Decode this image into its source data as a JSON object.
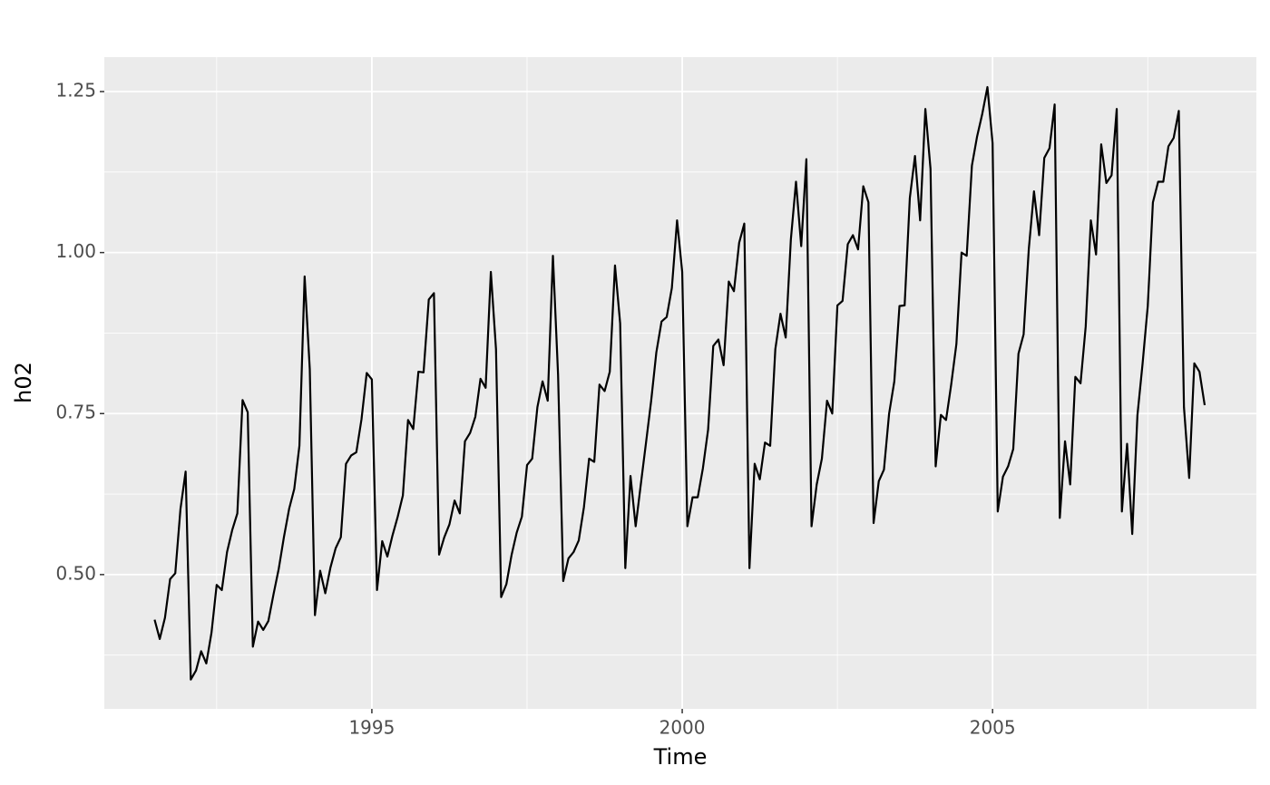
{
  "chart_data": {
    "type": "line",
    "x_label": "Time",
    "y_label": "h02",
    "xlim": [
      1990.69,
      2009.25
    ],
    "ylim": [
      0.2915,
      1.3035
    ],
    "xticks": [
      1995,
      2000,
      2005
    ],
    "yticks": [
      {
        "value": 0.5,
        "label": "0.50"
      },
      {
        "value": 0.75,
        "label": "0.75"
      },
      {
        "value": 1.0,
        "label": "1.00"
      },
      {
        "value": 1.25,
        "label": "1.25"
      }
    ],
    "grid": true,
    "color": "#000000",
    "x": [
      1991.5,
      1991.583,
      1991.667,
      1991.75,
      1991.833,
      1991.917,
      1992,
      1992.083,
      1992.167,
      1992.25,
      1992.333,
      1992.417,
      1992.5,
      1992.583,
      1992.667,
      1992.75,
      1992.833,
      1992.917,
      1993,
      1993.083,
      1993.167,
      1993.25,
      1993.333,
      1993.417,
      1993.5,
      1993.583,
      1993.667,
      1993.75,
      1993.833,
      1993.917,
      1994,
      1994.083,
      1994.167,
      1994.25,
      1994.333,
      1994.417,
      1994.5,
      1994.583,
      1994.667,
      1994.75,
      1994.833,
      1994.917,
      1995,
      1995.083,
      1995.167,
      1995.25,
      1995.333,
      1995.417,
      1995.5,
      1995.583,
      1995.667,
      1995.75,
      1995.833,
      1995.917,
      1996,
      1996.083,
      1996.167,
      1996.25,
      1996.333,
      1996.417,
      1996.5,
      1996.583,
      1996.667,
      1996.75,
      1996.833,
      1996.917,
      1997,
      1997.083,
      1997.167,
      1997.25,
      1997.333,
      1997.417,
      1997.5,
      1997.583,
      1997.667,
      1997.75,
      1997.833,
      1997.917,
      1998,
      1998.083,
      1998.167,
      1998.25,
      1998.333,
      1998.417,
      1998.5,
      1998.583,
      1998.667,
      1998.75,
      1998.833,
      1998.917,
      1999,
      1999.083,
      1999.167,
      1999.25,
      1999.333,
      1999.417,
      1999.5,
      1999.583,
      1999.667,
      1999.75,
      1999.833,
      1999.917,
      2000,
      2000.083,
      2000.167,
      2000.25,
      2000.333,
      2000.417,
      2000.5,
      2000.583,
      2000.667,
      2000.75,
      2000.833,
      2000.917,
      2001,
      2001.083,
      2001.167,
      2001.25,
      2001.333,
      2001.417,
      2001.5,
      2001.583,
      2001.667,
      2001.75,
      2001.833,
      2001.917,
      2002,
      2002.083,
      2002.167,
      2002.25,
      2002.333,
      2002.417,
      2002.5,
      2002.583,
      2002.667,
      2002.75,
      2002.833,
      2002.917,
      2003,
      2003.083,
      2003.167,
      2003.25,
      2003.333,
      2003.417,
      2003.5,
      2003.583,
      2003.667,
      2003.75,
      2003.833,
      2003.917,
      2004,
      2004.083,
      2004.167,
      2004.25,
      2004.333,
      2004.417,
      2004.5,
      2004.583,
      2004.667,
      2004.75,
      2004.833,
      2004.917,
      2005,
      2005.083,
      2005.167,
      2005.25,
      2005.333,
      2005.417,
      2005.5,
      2005.583,
      2005.667,
      2005.75,
      2005.833,
      2005.917,
      2006,
      2006.083,
      2006.167,
      2006.25,
      2006.333,
      2006.417,
      2006.5,
      2006.583,
      2006.667,
      2006.75,
      2006.833,
      2006.917,
      2007,
      2007.083,
      2007.167,
      2007.25,
      2007.333,
      2007.417,
      2007.5,
      2007.583,
      2007.667,
      2007.75,
      2007.833,
      2007.917,
      2008,
      2008.083,
      2008.167,
      2008.25,
      2008.333,
      2008.417
    ],
    "values": [
      0.43,
      0.4,
      0.433,
      0.493,
      0.502,
      0.602,
      0.66,
      0.337,
      0.351,
      0.381,
      0.362,
      0.41,
      0.484,
      0.476,
      0.535,
      0.569,
      0.595,
      0.771,
      0.752,
      0.388,
      0.427,
      0.414,
      0.428,
      0.47,
      0.509,
      0.558,
      0.602,
      0.633,
      0.7,
      0.963,
      0.819,
      0.437,
      0.506,
      0.471,
      0.511,
      0.541,
      0.558,
      0.672,
      0.685,
      0.69,
      0.741,
      0.813,
      0.803,
      0.476,
      0.552,
      0.528,
      0.561,
      0.59,
      0.623,
      0.74,
      0.726,
      0.815,
      0.814,
      0.927,
      0.937,
      0.531,
      0.558,
      0.578,
      0.615,
      0.595,
      0.707,
      0.72,
      0.745,
      0.804,
      0.79,
      0.97,
      0.85,
      0.465,
      0.485,
      0.53,
      0.565,
      0.59,
      0.67,
      0.68,
      0.76,
      0.8,
      0.77,
      0.995,
      0.81,
      0.49,
      0.525,
      0.535,
      0.553,
      0.605,
      0.68,
      0.675,
      0.795,
      0.785,
      0.815,
      0.98,
      0.89,
      0.51,
      0.653,
      0.575,
      0.64,
      0.705,
      0.77,
      0.845,
      0.893,
      0.9,
      0.945,
      1.05,
      0.97,
      0.575,
      0.62,
      0.62,
      0.665,
      0.725,
      0.855,
      0.865,
      0.825,
      0.955,
      0.94,
      1.015,
      1.045,
      0.51,
      0.672,
      0.648,
      0.705,
      0.7,
      0.85,
      0.905,
      0.868,
      1.02,
      1.11,
      1.01,
      1.145,
      0.575,
      0.64,
      0.68,
      0.77,
      0.75,
      0.918,
      0.925,
      1.013,
      1.027,
      1.005,
      1.103,
      1.078,
      0.58,
      0.645,
      0.663,
      0.75,
      0.8,
      0.917,
      0.918,
      1.085,
      1.15,
      1.05,
      1.223,
      1.13,
      0.668,
      0.748,
      0.74,
      0.795,
      0.858,
      1.0,
      0.995,
      1.135,
      1.18,
      1.215,
      1.257,
      1.17,
      0.598,
      0.652,
      0.668,
      0.695,
      0.843,
      0.873,
      1.005,
      1.095,
      1.027,
      1.147,
      1.162,
      1.23,
      0.588,
      0.707,
      0.64,
      0.807,
      0.797,
      0.885,
      1.05,
      0.997,
      1.168,
      1.108,
      1.12,
      1.223,
      0.598,
      0.703,
      0.563,
      0.747,
      0.828,
      0.917,
      1.078,
      1.11,
      1.11,
      1.165,
      1.178,
      1.22,
      0.76,
      0.65,
      0.828,
      0.815,
      0.763
    ]
  }
}
